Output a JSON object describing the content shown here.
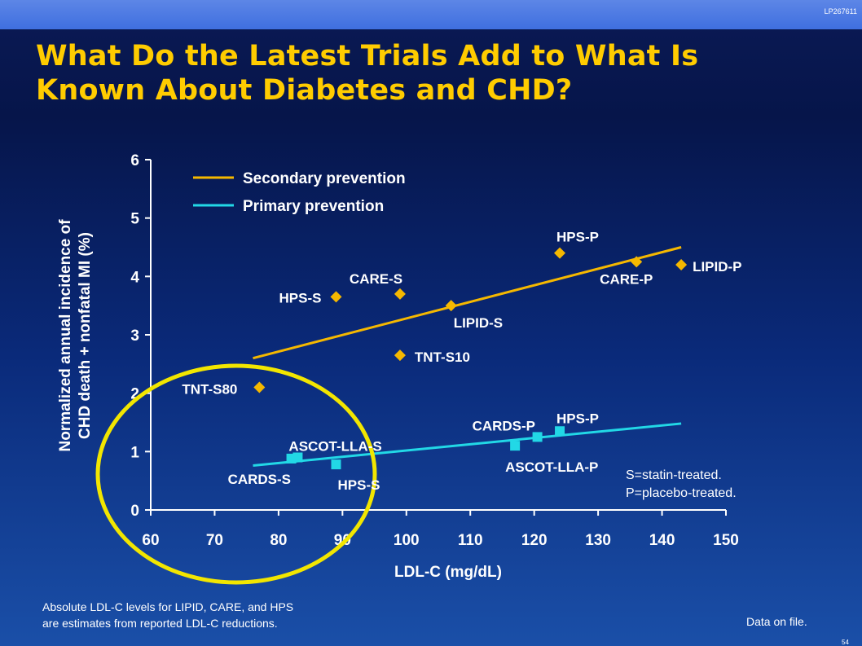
{
  "header": {
    "code": "LP267611"
  },
  "title": {
    "line1": "What Do the Latest Trials Add to What Is",
    "line2": "Known About Diabetes and CHD?"
  },
  "note": {
    "line1": "S=statin-treated.",
    "line2": "P=placebo-treated."
  },
  "footnote": {
    "line1": "Absolute LDL-C levels for LIPID, CARE, and HPS",
    "line2": "are estimates from reported LDL-C reductions."
  },
  "data_source": "Data on file.",
  "page_number": "54",
  "colors": {
    "secondary": "#f5b800",
    "primary": "#22d8e6",
    "title": "#ffcc00",
    "circle": "#f2e600"
  },
  "chart_data": {
    "type": "scatter",
    "xlabel": "LDL-C (mg/dL)",
    "ylabel_line1": "Normalized annual incidence of",
    "ylabel_line2": "CHD death + nonfatal MI (%)",
    "xlim": [
      60,
      150
    ],
    "ylim": [
      0,
      6
    ],
    "x_ticks": [
      "60",
      "70",
      "80",
      "90",
      "100",
      "110",
      "120",
      "130",
      "140",
      "150"
    ],
    "y_ticks": [
      "0",
      "1",
      "2",
      "3",
      "4",
      "5",
      "6"
    ],
    "legend": {
      "position": "top-left"
    },
    "series": [
      {
        "name": "Secondary prevention",
        "marker": "diamond",
        "points": [
          {
            "label": "HPS-S",
            "x": 89,
            "y": 3.65
          },
          {
            "label": "CARE-S",
            "x": 99,
            "y": 3.7
          },
          {
            "label": "LIPID-S",
            "x": 107,
            "y": 3.5
          },
          {
            "label": "TNT-S10",
            "x": 99,
            "y": 2.65
          },
          {
            "label": "TNT-S80",
            "x": 77,
            "y": 2.1
          },
          {
            "label": "HPS-P",
            "x": 124,
            "y": 4.4
          },
          {
            "label": "CARE-P",
            "x": 136,
            "y": 4.25
          },
          {
            "label": "LIPID-P",
            "x": 143,
            "y": 4.2
          }
        ],
        "trendline": [
          [
            76,
            2.6
          ],
          [
            143,
            4.5
          ]
        ]
      },
      {
        "name": "Primary prevention",
        "marker": "square",
        "points": [
          {
            "label": "CARDS-S",
            "x": 82,
            "y": 0.88
          },
          {
            "label": "ASCOT-LLA-S",
            "x": 83,
            "y": 0.9
          },
          {
            "label": "HPS-S",
            "x": 89,
            "y": 0.78
          },
          {
            "label": "ASCOT-LLA-P",
            "x": 117,
            "y": 1.1
          },
          {
            "label": "CARDS-P",
            "x": 120.5,
            "y": 1.25
          },
          {
            "label": "HPS-P",
            "x": 124,
            "y": 1.35
          }
        ],
        "trendline": [
          [
            76,
            0.76
          ],
          [
            143,
            1.48
          ]
        ]
      }
    ]
  }
}
